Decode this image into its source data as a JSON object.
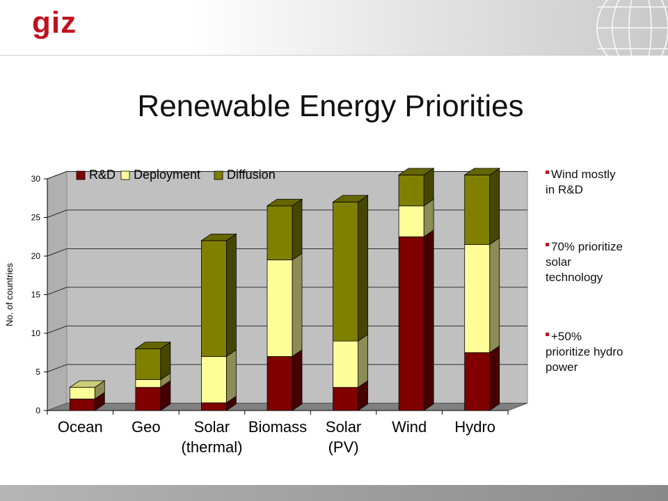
{
  "slide": {
    "logo": "giz",
    "title": "Renewable Energy Priorities"
  },
  "bullets": [
    {
      "text": "Wind mostly in R&D",
      "lines": [
        "Wind mostly",
        "in R&D"
      ]
    },
    {
      "text": "70% prioritize solar technology",
      "lines": [
        "70% prioritize",
        "solar",
        "technology"
      ]
    },
    {
      "text": "+50% prioritize hydro power",
      "lines": [
        "+50%",
        "prioritize hydro",
        "power"
      ]
    }
  ],
  "chart_data": {
    "type": "bar",
    "stacked": true,
    "three_d": true,
    "ylabel": "No. of countries",
    "xlabel": "",
    "ylim": [
      0,
      30
    ],
    "yticks": [
      0,
      5,
      10,
      15,
      20,
      25,
      30
    ],
    "grid": true,
    "legend_position": "top-inside",
    "categories": [
      "Ocean",
      "Geo",
      "Solar (thermal)",
      "Biomass",
      "Solar (PV)",
      "Wind",
      "Hydro"
    ],
    "category_lines": [
      [
        "Ocean"
      ],
      [
        "Geo"
      ],
      [
        "Solar",
        "(thermal)"
      ],
      [
        "Biomass"
      ],
      [
        "Solar",
        "(PV)"
      ],
      [
        "Wind"
      ],
      [
        "Hydro"
      ]
    ],
    "series": [
      {
        "name": "R&D",
        "color": "#800000",
        "values": [
          1.5,
          3,
          1,
          7,
          3,
          22.5,
          7.5
        ]
      },
      {
        "name": "Deployment",
        "color": "#ffff99",
        "values": [
          1.5,
          1,
          6,
          12.5,
          6,
          4,
          14
        ]
      },
      {
        "name": "Diffusion",
        "color": "#808000",
        "values": [
          0,
          4,
          15,
          7,
          18,
          4,
          9
        ]
      }
    ]
  }
}
